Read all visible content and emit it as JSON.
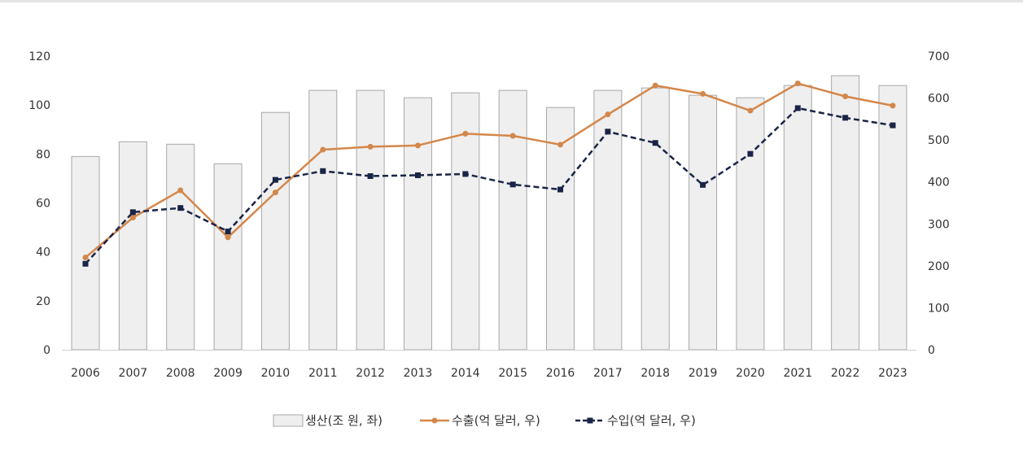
{
  "chart_data": {
    "type": "bar+line",
    "categories": [
      "2006",
      "2007",
      "2008",
      "2009",
      "2010",
      "2011",
      "2012",
      "2013",
      "2014",
      "2015",
      "2016",
      "2017",
      "2018",
      "2019",
      "2020",
      "2021",
      "2022",
      "2023"
    ],
    "series": [
      {
        "name": "생산(조 원, 좌)",
        "type": "bar",
        "axis": "left",
        "color": "#efefef",
        "stroke": "#a8a8a8",
        "values": [
          79,
          85,
          84,
          76,
          97,
          106,
          106,
          103,
          105,
          106,
          99,
          106,
          107,
          104,
          103,
          108,
          112,
          108
        ]
      },
      {
        "name": "수출(억 달러, 우)",
        "type": "line",
        "axis": "right",
        "color": "#d4874a",
        "values": [
          220,
          315,
          380,
          268,
          375,
          477,
          484,
          487,
          515,
          510,
          489,
          561,
          630,
          610,
          570,
          635,
          604,
          582
        ]
      },
      {
        "name": "수입(억 달러, 우)",
        "type": "line",
        "axis": "right",
        "color": "#1a2447",
        "values": [
          205,
          328,
          338,
          282,
          405,
          426,
          414,
          416,
          419,
          394,
          382,
          520,
          493,
          393,
          467,
          576,
          553,
          535
        ]
      }
    ],
    "y_left": {
      "min": 0,
      "max": 120,
      "ticks": [
        "0",
        "20",
        "40",
        "60",
        "80",
        "100",
        "120"
      ]
    },
    "y_right": {
      "min": 0,
      "max": 700,
      "ticks": [
        "0",
        "100",
        "200",
        "300",
        "400",
        "500",
        "600",
        "700"
      ]
    },
    "legend": [
      "생산(조 원, 좌)",
      "수출(억 달러, 우)",
      "수입(억 달러, 우)"
    ],
    "legend_position": "bottom"
  }
}
